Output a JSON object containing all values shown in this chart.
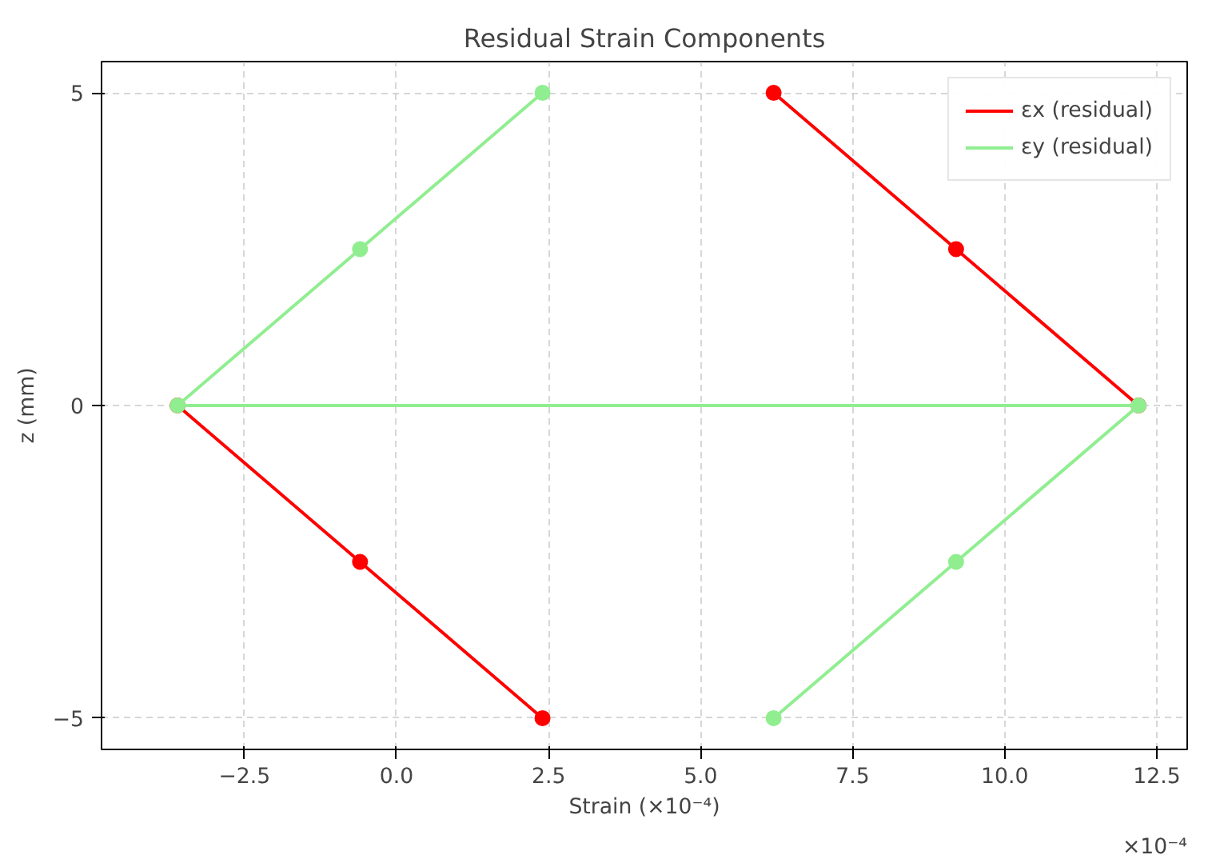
{
  "chart_data": {
    "type": "line",
    "title": "Residual Strain Components",
    "xlabel": "Strain (×10⁻⁴)",
    "ylabel": "z (mm)",
    "annotations": [
      "×10⁻⁴"
    ],
    "series": [
      {
        "name": "εx (residual)",
        "color": "#ff0000",
        "x": [
          2.4,
          -0.6,
          -3.6,
          12.2,
          9.2,
          6.2
        ],
        "values": [
          -5,
          -2.5,
          0,
          0,
          2.5,
          5
        ]
      },
      {
        "name": "εy (residual)",
        "color": "#90ee90",
        "x": [
          6.2,
          9.2,
          12.2,
          -3.6,
          -0.6,
          2.4
        ],
        "values": [
          -5,
          -2.5,
          0,
          0,
          2.5,
          5
        ]
      }
    ],
    "xlim": [
      -4.85,
      13.0
    ],
    "ylim": [
      -5.5,
      5.5
    ],
    "xticks": [
      {
        "value": -2.5,
        "label": "−2.5"
      },
      {
        "value": 0,
        "label": "0.0"
      },
      2.5,
      {
        "value": 5,
        "label": "5.0"
      },
      7.5,
      {
        "value": 10,
        "label": "10.0"
      },
      12.5
    ],
    "yticks": [
      {
        "value": -5,
        "label": "−5"
      },
      0,
      5
    ],
    "grid": true,
    "legend": "top right",
    "marker": "circle",
    "line_style": "solid"
  }
}
